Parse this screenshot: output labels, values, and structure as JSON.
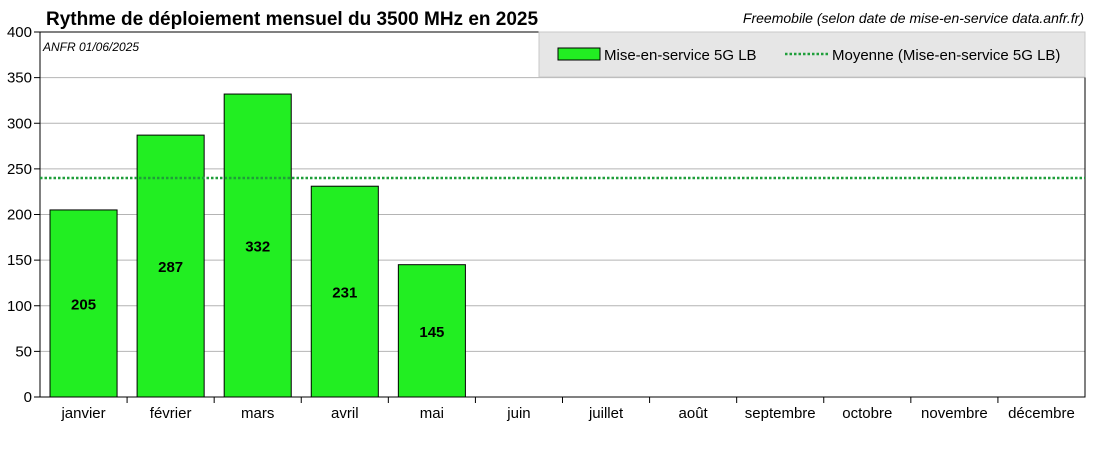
{
  "chart_data": {
    "type": "bar",
    "title": "Rythme de déploiement mensuel du 3500 MHz en 2025",
    "source": "Freemobile (selon date de mise-en-service data.anfr.fr)",
    "note": "ANFR 01/06/2025",
    "categories": [
      "janvier",
      "février",
      "mars",
      "avril",
      "mai",
      "juin",
      "juillet",
      "août",
      "septembre",
      "octobre",
      "novembre",
      "décembre"
    ],
    "series": [
      {
        "name": "Mise-en-service 5G LB",
        "values": [
          205,
          287,
          332,
          231,
          145,
          null,
          null,
          null,
          null,
          null,
          null,
          null
        ],
        "color": "#22ee22"
      }
    ],
    "average": {
      "name": "Moyenne (Mise-en-service 5G LB)",
      "value": 240,
      "color": "#1e9e3a"
    },
    "ylim": [
      0,
      400
    ],
    "yticks": [
      0,
      50,
      100,
      150,
      200,
      250,
      300,
      350,
      400
    ],
    "grid": true,
    "legend_position": "top-right"
  }
}
